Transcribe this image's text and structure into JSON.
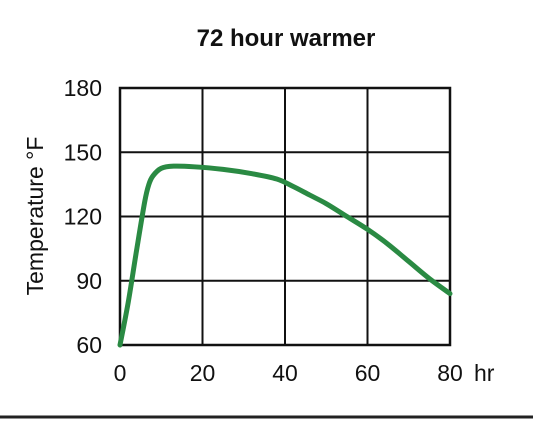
{
  "chart_data": {
    "type": "line",
    "title": "72 hour warmer",
    "xlabel": "",
    "ylabel": "Temperature °F",
    "x_unit_label": "hr",
    "xlim": [
      0,
      80
    ],
    "ylim": [
      60,
      180
    ],
    "x_ticks": [
      0,
      20,
      40,
      60,
      80
    ],
    "y_ticks": [
      60,
      90,
      120,
      150,
      180
    ],
    "grid": true,
    "legend": "none",
    "series": [
      {
        "color": "#2a8a43",
        "x": [
          0,
          2,
          4,
          6,
          7,
          8,
          10,
          13,
          18,
          25,
          32,
          38,
          42,
          46,
          50,
          55,
          60,
          65,
          70,
          75,
          80
        ],
        "y": [
          60,
          80,
          104,
          127,
          135,
          139,
          142.5,
          143.5,
          143.2,
          142,
          140,
          137.5,
          134,
          130,
          126,
          120,
          114,
          107,
          99,
          91,
          84
        ]
      }
    ]
  }
}
